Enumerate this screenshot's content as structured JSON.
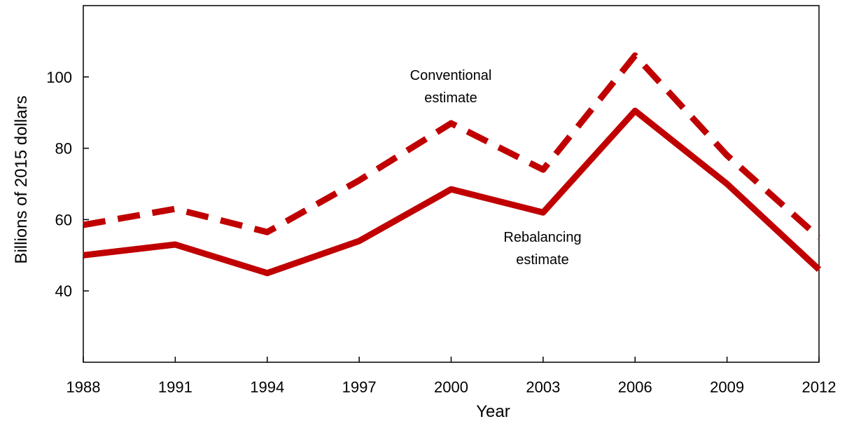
{
  "chart_data": {
    "type": "line",
    "title": "",
    "xlabel": "Year",
    "ylabel": "Billions of 2015 dollars",
    "x": [
      "1988",
      "1991",
      "1994",
      "1997",
      "2000",
      "2003",
      "2006",
      "2009",
      "2012"
    ],
    "xlim": [
      1988,
      2012
    ],
    "ylim": [
      20,
      120
    ],
    "yticks": [
      "40",
      "60",
      "80",
      "100"
    ],
    "grid": false,
    "legend": "none",
    "series": [
      {
        "key": "conventional",
        "style": "dashed",
        "color": "#c00000",
        "values": [
          58.5,
          63,
          56.5,
          71,
          87,
          74,
          106,
          78,
          55
        ]
      },
      {
        "key": "rebalancing",
        "style": "solid",
        "color": "#c00000",
        "values": [
          50,
          53,
          45,
          54,
          68.5,
          62,
          90.5,
          70,
          46
        ]
      }
    ],
    "annotations": [
      {
        "key": "conventional",
        "lines": [
          "Conventional",
          "estimate"
        ]
      },
      {
        "key": "rebalancing",
        "lines": [
          "Rebalancing",
          "estimate"
        ]
      }
    ]
  }
}
